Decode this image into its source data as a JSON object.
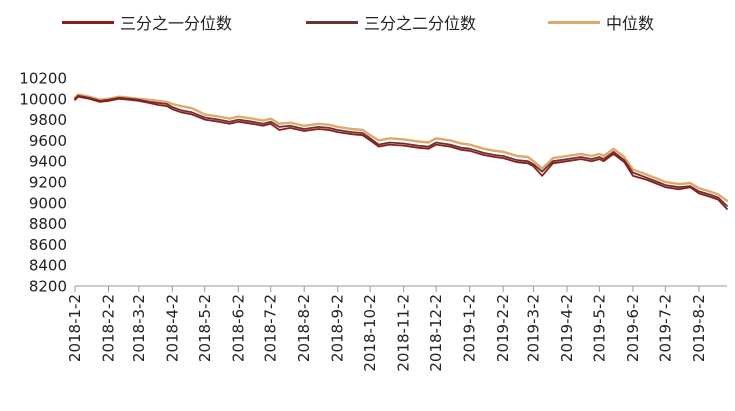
{
  "legend": {
    "items": [
      {
        "label": "三分之一分位数",
        "color": "#8b1d1d"
      },
      {
        "label": "三分之二分位数",
        "color": "#6b3232"
      },
      {
        "label": "中位数",
        "color": "#e0a86a"
      }
    ]
  },
  "chart_data": {
    "type": "line",
    "ylim": [
      8200,
      10200
    ],
    "yticks": [
      8200,
      8400,
      8600,
      8800,
      9000,
      9200,
      9400,
      9600,
      9800,
      10000,
      10200
    ],
    "xticks": [
      "2018-1-2",
      "2018-2-2",
      "2018-3-2",
      "2018-4-2",
      "2018-5-2",
      "2018-6-2",
      "2018-7-2",
      "2018-8-2",
      "2018-9-2",
      "2018-10-2",
      "2018-11-2",
      "2018-12-2",
      "2019-1-2",
      "2019-2-2",
      "2019-3-2",
      "2019-4-2",
      "2019-5-2",
      "2019-6-2",
      "2019-7-2",
      "2019-8-2"
    ],
    "x_label_dates": [
      "2018-01-02",
      "2018-02-02",
      "2018-03-02",
      "2018-04-02",
      "2018-05-02",
      "2018-06-02",
      "2018-07-02",
      "2018-08-02",
      "2018-09-02",
      "2018-10-02",
      "2018-11-02",
      "2018-12-02",
      "2019-01-02",
      "2019-02-02",
      "2019-03-02",
      "2019-04-02",
      "2019-05-02",
      "2019-06-02",
      "2019-07-02",
      "2019-08-02"
    ],
    "x_range": [
      "2018-01-02",
      "2019-08-28"
    ],
    "series": [
      {
        "name": "三分之一分位数",
        "color": "#8b1d1d",
        "x": [
          "2018-01-02",
          "2018-01-05",
          "2018-01-15",
          "2018-01-25",
          "2018-02-02",
          "2018-02-12",
          "2018-02-22",
          "2018-03-02",
          "2018-03-12",
          "2018-03-20",
          "2018-03-28",
          "2018-04-02",
          "2018-04-10",
          "2018-04-20",
          "2018-05-02",
          "2018-05-15",
          "2018-05-25",
          "2018-06-02",
          "2018-06-15",
          "2018-06-25",
          "2018-07-02",
          "2018-07-10",
          "2018-07-20",
          "2018-08-02",
          "2018-08-15",
          "2018-08-25",
          "2018-09-02",
          "2018-09-15",
          "2018-09-25",
          "2018-10-02",
          "2018-10-10",
          "2018-10-20",
          "2018-11-02",
          "2018-11-15",
          "2018-11-25",
          "2018-12-02",
          "2018-12-15",
          "2018-12-25",
          "2019-01-02",
          "2019-01-15",
          "2019-01-25",
          "2019-02-02",
          "2019-02-15",
          "2019-02-25",
          "2019-03-02",
          "2019-03-10",
          "2019-03-20",
          "2019-04-02",
          "2019-04-15",
          "2019-04-25",
          "2019-05-02",
          "2019-05-06",
          "2019-05-15",
          "2019-05-25",
          "2019-06-02",
          "2019-06-15",
          "2019-06-25",
          "2019-07-02",
          "2019-07-15",
          "2019-07-25",
          "2019-08-02",
          "2019-08-12",
          "2019-08-20",
          "2019-08-28"
        ],
        "y": [
          9990,
          10020,
          10000,
          9970,
          9980,
          10000,
          9990,
          9980,
          9960,
          9940,
          9930,
          9900,
          9870,
          9850,
          9800,
          9780,
          9760,
          9780,
          9760,
          9740,
          9760,
          9700,
          9720,
          9690,
          9710,
          9700,
          9680,
          9660,
          9650,
          9600,
          9540,
          9560,
          9550,
          9530,
          9520,
          9560,
          9540,
          9510,
          9500,
          9460,
          9440,
          9430,
          9390,
          9380,
          9350,
          9260,
          9380,
          9400,
          9420,
          9400,
          9420,
          9400,
          9470,
          9390,
          9260,
          9220,
          9180,
          9150,
          9130,
          9150,
          9090,
          9060,
          9030,
          8940
        ]
      },
      {
        "name": "三分之二分位数",
        "color": "#6b3232",
        "x": [
          "2018-01-02",
          "2018-01-05",
          "2018-01-15",
          "2018-01-25",
          "2018-02-02",
          "2018-02-12",
          "2018-02-22",
          "2018-03-02",
          "2018-03-12",
          "2018-03-20",
          "2018-03-28",
          "2018-04-02",
          "2018-04-10",
          "2018-04-20",
          "2018-05-02",
          "2018-05-15",
          "2018-05-25",
          "2018-06-02",
          "2018-06-15",
          "2018-06-25",
          "2018-07-02",
          "2018-07-10",
          "2018-07-20",
          "2018-08-02",
          "2018-08-15",
          "2018-08-25",
          "2018-09-02",
          "2018-09-15",
          "2018-09-25",
          "2018-10-02",
          "2018-10-10",
          "2018-10-20",
          "2018-11-02",
          "2018-11-15",
          "2018-11-25",
          "2018-12-02",
          "2018-12-15",
          "2018-12-25",
          "2019-01-02",
          "2019-01-15",
          "2019-01-25",
          "2019-02-02",
          "2019-02-15",
          "2019-02-25",
          "2019-03-02",
          "2019-03-10",
          "2019-03-20",
          "2019-04-02",
          "2019-04-15",
          "2019-04-25",
          "2019-05-02",
          "2019-05-06",
          "2019-05-15",
          "2019-05-25",
          "2019-06-02",
          "2019-06-15",
          "2019-06-25",
          "2019-07-02",
          "2019-07-15",
          "2019-07-25",
          "2019-08-02",
          "2019-08-12",
          "2019-08-20",
          "2019-08-28"
        ],
        "y": [
          10000,
          10030,
          10010,
          9980,
          9990,
          10010,
          10000,
          9990,
          9970,
          9960,
          9950,
          9920,
          9890,
          9870,
          9820,
          9800,
          9780,
          9800,
          9780,
          9760,
          9780,
          9730,
          9740,
          9710,
          9730,
          9720,
          9700,
          9680,
          9670,
          9620,
          9560,
          9580,
          9570,
          9550,
          9540,
          9580,
          9560,
          9530,
          9520,
          9480,
          9460,
          9450,
          9410,
          9400,
          9370,
          9300,
          9400,
          9420,
          9440,
          9420,
          9440,
          9420,
          9490,
          9410,
          9290,
          9240,
          9200,
          9170,
          9150,
          9160,
          9110,
          9080,
          9050,
          8970
        ]
      },
      {
        "name": "中位数",
        "color": "#e0a86a",
        "x": [
          "2018-01-02",
          "2018-01-05",
          "2018-01-15",
          "2018-01-25",
          "2018-02-02",
          "2018-02-12",
          "2018-02-22",
          "2018-03-02",
          "2018-03-12",
          "2018-03-20",
          "2018-03-28",
          "2018-04-02",
          "2018-04-10",
          "2018-04-20",
          "2018-05-02",
          "2018-05-15",
          "2018-05-25",
          "2018-06-02",
          "2018-06-15",
          "2018-06-25",
          "2018-07-02",
          "2018-07-10",
          "2018-07-20",
          "2018-08-02",
          "2018-08-15",
          "2018-08-25",
          "2018-09-02",
          "2018-09-15",
          "2018-09-25",
          "2018-10-02",
          "2018-10-10",
          "2018-10-20",
          "2018-11-02",
          "2018-11-15",
          "2018-11-25",
          "2018-12-02",
          "2018-12-15",
          "2018-12-25",
          "2019-01-02",
          "2019-01-15",
          "2019-01-25",
          "2019-02-02",
          "2019-02-15",
          "2019-02-25",
          "2019-03-02",
          "2019-03-10",
          "2019-03-20",
          "2019-04-02",
          "2019-04-15",
          "2019-04-25",
          "2019-05-02",
          "2019-05-06",
          "2019-05-15",
          "2019-05-25",
          "2019-06-02",
          "2019-06-15",
          "2019-06-25",
          "2019-07-02",
          "2019-07-15",
          "2019-07-25",
          "2019-08-02",
          "2019-08-12",
          "2019-08-20",
          "2019-08-28"
        ],
        "y": [
          10010,
          10040,
          10020,
          9990,
          10000,
          10020,
          10010,
          10000,
          9990,
          9980,
          9970,
          9950,
          9930,
          9910,
          9850,
          9830,
          9810,
          9830,
          9810,
          9790,
          9810,
          9760,
          9770,
          9740,
          9760,
          9750,
          9730,
          9710,
          9700,
          9650,
          9600,
          9620,
          9610,
          9590,
          9580,
          9620,
          9600,
          9570,
          9560,
          9520,
          9500,
          9490,
          9450,
          9440,
          9400,
          9330,
          9430,
          9450,
          9470,
          9450,
          9470,
          9450,
          9520,
          9440,
          9320,
          9270,
          9230,
          9200,
          9180,
          9190,
          9140,
          9110,
          9080,
          9020
        ]
      }
    ]
  }
}
